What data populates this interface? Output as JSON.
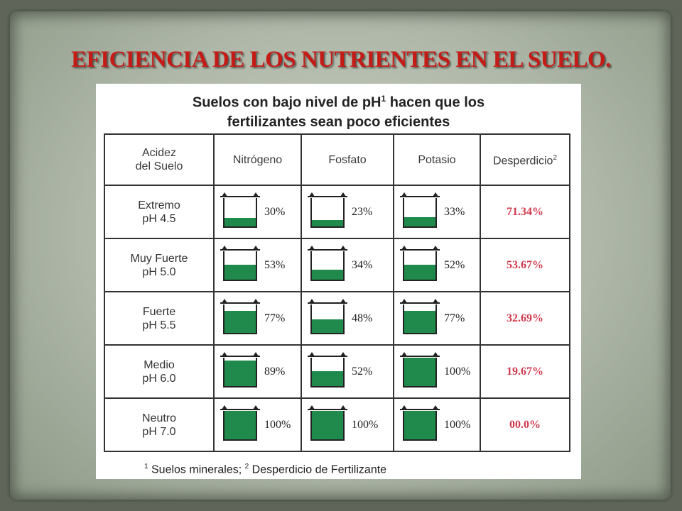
{
  "slide": {
    "title": "EFICIENCIA DE LOS NUTRIENTES EN EL SUELO."
  },
  "figure": {
    "heading_line1_pre": "Suelos con bajo nivel de pH",
    "heading_line1_sup": "1",
    "heading_line1_post": " hacen que los",
    "heading_line2": "fertilizantes sean poco eficientes",
    "footnote_sup1": "1",
    "footnote_text1": " Suelos minerales; ",
    "footnote_sup2": "2",
    "footnote_text2": " Desperdicio de Fertilizante"
  },
  "table": {
    "headers": {
      "acidez_line1": "Acidez",
      "acidez_line2": "del Suelo",
      "nitrogeno": "Nitrógeno",
      "fosfato": "Fosfato",
      "potasio": "Potasio",
      "desperdicio": "Desperdicio",
      "desperdicio_sup": "2"
    },
    "fill_color": "#1f8a4c",
    "waste_color": "#d13a4d",
    "rows": [
      {
        "level": "Extremo",
        "ph": "pH 4.5",
        "nitrogeno": "30%",
        "nitrogeno_value": 30,
        "fosfato": "23%",
        "fosfato_value": 23,
        "potasio": "33%",
        "potasio_value": 33,
        "desperdicio": "71.34%"
      },
      {
        "level": "Muy Fuerte",
        "ph": "pH 5.0",
        "nitrogeno": "53%",
        "nitrogeno_value": 53,
        "fosfato": "34%",
        "fosfato_value": 34,
        "potasio": "52%",
        "potasio_value": 52,
        "desperdicio": "53.67%"
      },
      {
        "level": "Fuerte",
        "ph": "pH 5.5",
        "nitrogeno": "77%",
        "nitrogeno_value": 77,
        "fosfato": "48%",
        "fosfato_value": 48,
        "potasio": "77%",
        "potasio_value": 77,
        "desperdicio": "32.69%"
      },
      {
        "level": "Medio",
        "ph": "pH 6.0",
        "nitrogeno": "89%",
        "nitrogeno_value": 89,
        "fosfato": "52%",
        "fosfato_value": 52,
        "potasio": "100%",
        "potasio_value": 100,
        "desperdicio": "19.67%"
      },
      {
        "level": "Neutro",
        "ph": "pH 7.0",
        "nitrogeno": "100%",
        "nitrogeno_value": 100,
        "fosfato": "100%",
        "fosfato_value": 100,
        "potasio": "100%",
        "potasio_value": 100,
        "desperdicio": "00.0%"
      }
    ]
  }
}
